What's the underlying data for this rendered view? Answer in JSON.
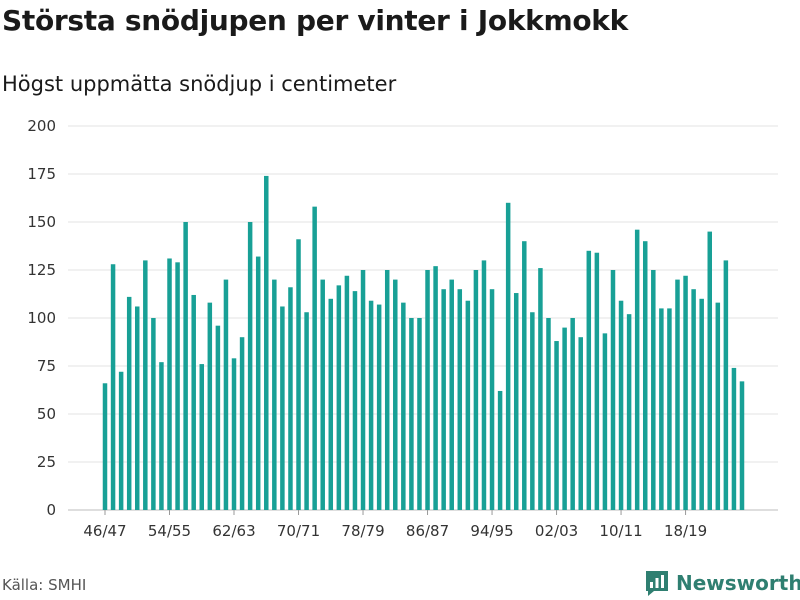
{
  "chart_data": {
    "type": "bar",
    "title": "Största snödjupen per vinter i Jokkmokk",
    "subtitle": "Högst uppmätta snödjup i centimeter",
    "xlabel": "",
    "ylabel": "",
    "ylim": [
      0,
      200
    ],
    "yticks": [
      0,
      25,
      50,
      75,
      100,
      125,
      150,
      175,
      200
    ],
    "grid": true,
    "bar_color": "#18a096",
    "categories": [
      "46/47",
      "47/48",
      "48/49",
      "49/50",
      "50/51",
      "51/52",
      "52/53",
      "53/54",
      "54/55",
      "55/56",
      "56/57",
      "57/58",
      "58/59",
      "59/60",
      "60/61",
      "61/62",
      "62/63",
      "63/64",
      "64/65",
      "65/66",
      "66/67",
      "67/68",
      "68/69",
      "69/70",
      "70/71",
      "71/72",
      "72/73",
      "73/74",
      "74/75",
      "75/76",
      "76/77",
      "77/78",
      "78/79",
      "79/80",
      "80/81",
      "81/82",
      "82/83",
      "83/84",
      "84/85",
      "85/86",
      "86/87",
      "87/88",
      "88/89",
      "89/90",
      "90/91",
      "91/92",
      "92/93",
      "93/94",
      "94/95",
      "95/96",
      "96/97",
      "97/98",
      "98/99",
      "99/00",
      "00/01",
      "01/02",
      "02/03",
      "03/04",
      "04/05",
      "05/06",
      "06/07",
      "07/08",
      "08/09",
      "09/10",
      "10/11",
      "11/12",
      "12/13",
      "13/14",
      "14/15",
      "15/16",
      "16/17",
      "17/18",
      "18/19",
      "19/20",
      "20/21",
      "21/22",
      "22/23",
      "23/24",
      "24/25",
      "25/26"
    ],
    "x_tick_labels": [
      "46/47",
      "54/55",
      "62/63",
      "70/71",
      "78/79",
      "86/87",
      "94/95",
      "02/03",
      "10/11",
      "18/19"
    ],
    "values": [
      66,
      128,
      72,
      111,
      106,
      130,
      100,
      77,
      131,
      129,
      150,
      112,
      76,
      108,
      96,
      120,
      79,
      90,
      150,
      132,
      174,
      120,
      106,
      116,
      141,
      103,
      158,
      120,
      110,
      117,
      122,
      114,
      125,
      109,
      107,
      125,
      120,
      108,
      100,
      100,
      125,
      127,
      115,
      120,
      115,
      109,
      125,
      130,
      115,
      62,
      160,
      113,
      140,
      103,
      126,
      100,
      88,
      95,
      100,
      90,
      135,
      134,
      92,
      125,
      109,
      102,
      146,
      140,
      125,
      105,
      105,
      120,
      122,
      115,
      110,
      145,
      108,
      130,
      74,
      67
    ]
  },
  "footer": {
    "source": "Källa: SMHI",
    "brand": "Newsworthy",
    "brand_color": "#2f7f71",
    "brand_icon": "newsworthy-logo-icon"
  }
}
